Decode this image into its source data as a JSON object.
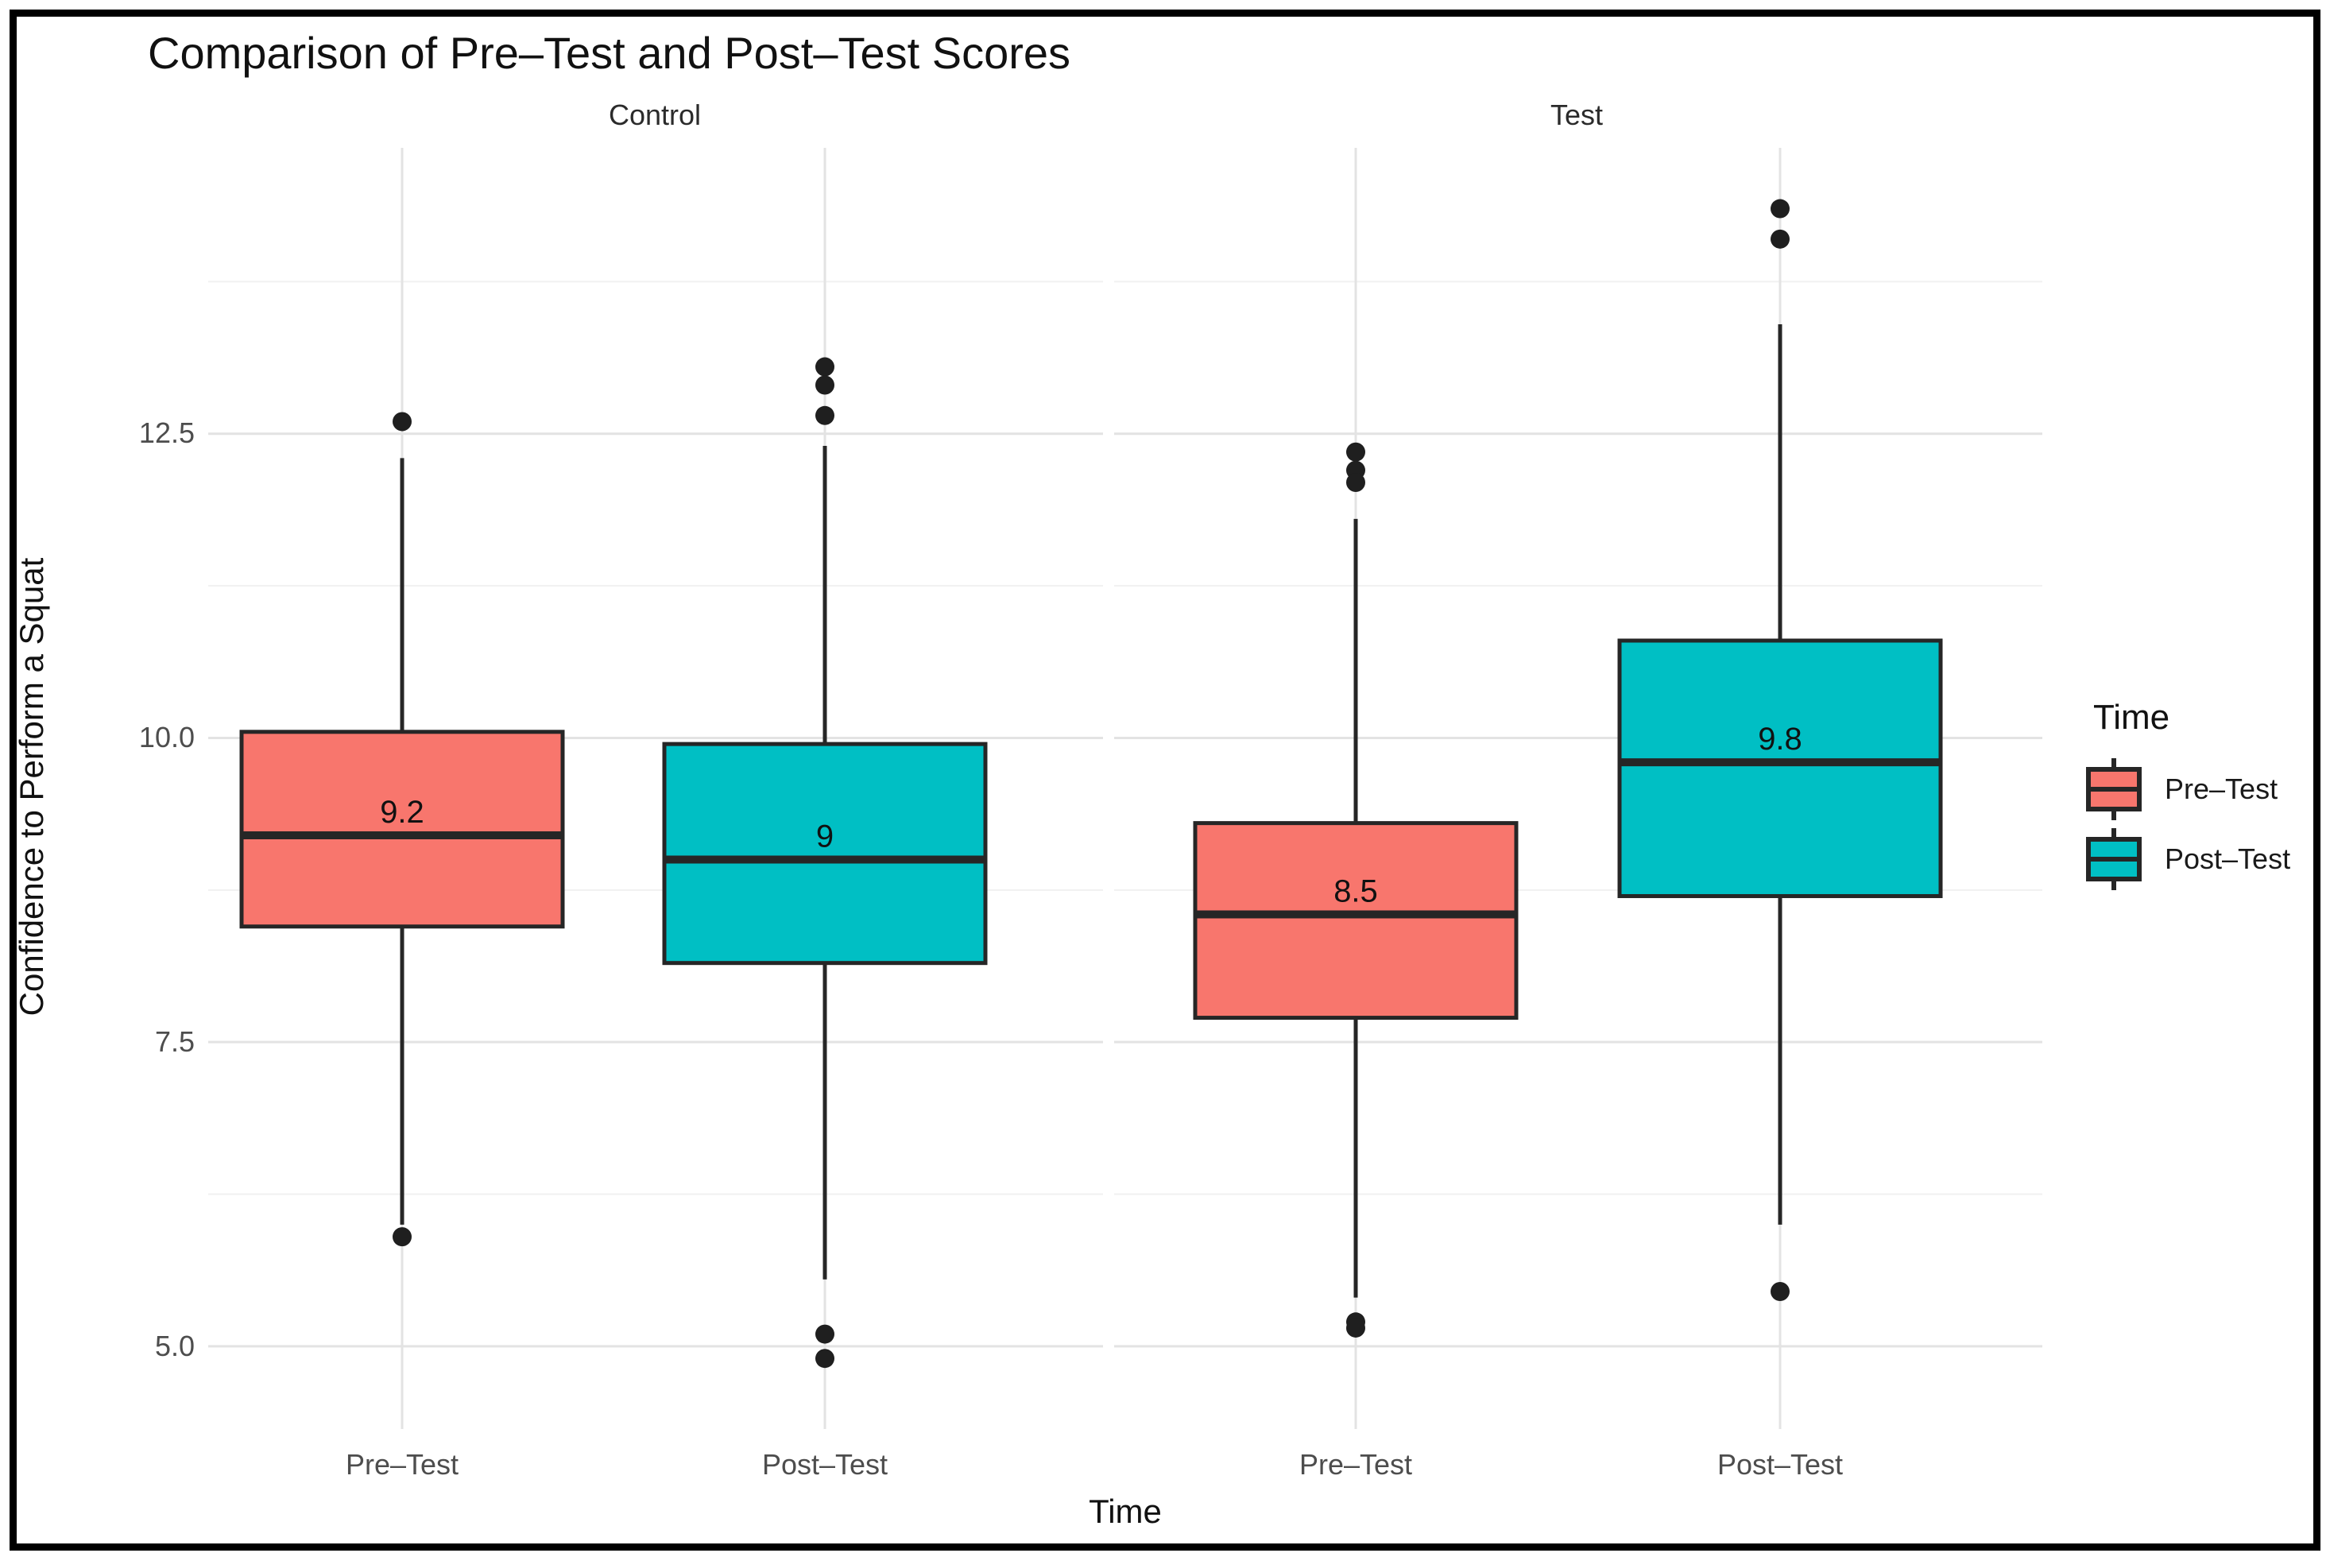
{
  "chart_data": {
    "type": "boxplot",
    "title": "Comparison of Pre–Test and Post–Test Scores",
    "xlabel": "Time",
    "ylabel": "Confidence to Perform a Squat",
    "ylim": [
      4.32,
      14.85
    ],
    "grid": true,
    "y_major_ticks": [
      {
        "value": 12.5,
        "label": "12.5"
      },
      {
        "value": 10.0,
        "label": "10.0"
      },
      {
        "value": 7.5,
        "label": "7.5"
      },
      {
        "value": 5.0,
        "label": "5.0"
      }
    ],
    "y_minor_gridlines": [
      13.75,
      11.25,
      8.75,
      6.25
    ],
    "x_categories": [
      "Pre–Test",
      "Post–Test"
    ],
    "facets": [
      {
        "label": "Control",
        "boxes": [
          {
            "group": "Pre–Test",
            "series": "Pre–Test",
            "fill": "#F8766D",
            "whisker_low": 6.0,
            "q1": 8.45,
            "median": 9.2,
            "q3": 10.05,
            "whisker_high": 12.3,
            "outliers_high": [
              12.6
            ],
            "outliers_low": [
              5.9
            ],
            "median_label": "9.2"
          },
          {
            "group": "Post–Test",
            "series": "Post–Test",
            "fill": "#00BFC4",
            "whisker_low": 5.55,
            "q1": 8.15,
            "median": 9.0,
            "q3": 9.95,
            "whisker_high": 12.4,
            "outliers_high": [
              13.05,
              12.9,
              12.65
            ],
            "outliers_low": [
              5.1,
              4.9
            ],
            "median_label": "9"
          }
        ]
      },
      {
        "label": "Test",
        "boxes": [
          {
            "group": "Pre–Test",
            "series": "Pre–Test",
            "fill": "#F8766D",
            "whisker_low": 5.4,
            "q1": 7.7,
            "median": 8.55,
            "q3": 9.3,
            "whisker_high": 11.8,
            "outliers_high": [
              12.35,
              12.2,
              12.1
            ],
            "outliers_low": [
              5.2,
              5.15
            ],
            "median_label": "8.5"
          },
          {
            "group": "Post–Test",
            "series": "Post–Test",
            "fill": "#00BFC4",
            "whisker_low": 6.0,
            "q1": 8.7,
            "median": 9.8,
            "q3": 10.8,
            "whisker_high": 13.4,
            "outliers_high": [
              14.35,
              14.1
            ],
            "outliers_low": [
              5.45
            ],
            "median_label": "9.8"
          }
        ]
      }
    ],
    "legend": {
      "title": "Time",
      "position": "right",
      "entries": [
        {
          "label": "Pre–Test",
          "color": "#F8766D"
        },
        {
          "label": "Post–Test",
          "color": "#00BFC4"
        }
      ]
    }
  },
  "colors": {
    "grid_major": "#E3E3E3",
    "grid_minor": "#F1F1F1",
    "box_stroke": "#262626",
    "outlier": "#1F1F1F",
    "axis_text": "#4D4D4D",
    "frame": "#000000",
    "salmon": "#F8766D",
    "teal": "#00BFC4"
  }
}
